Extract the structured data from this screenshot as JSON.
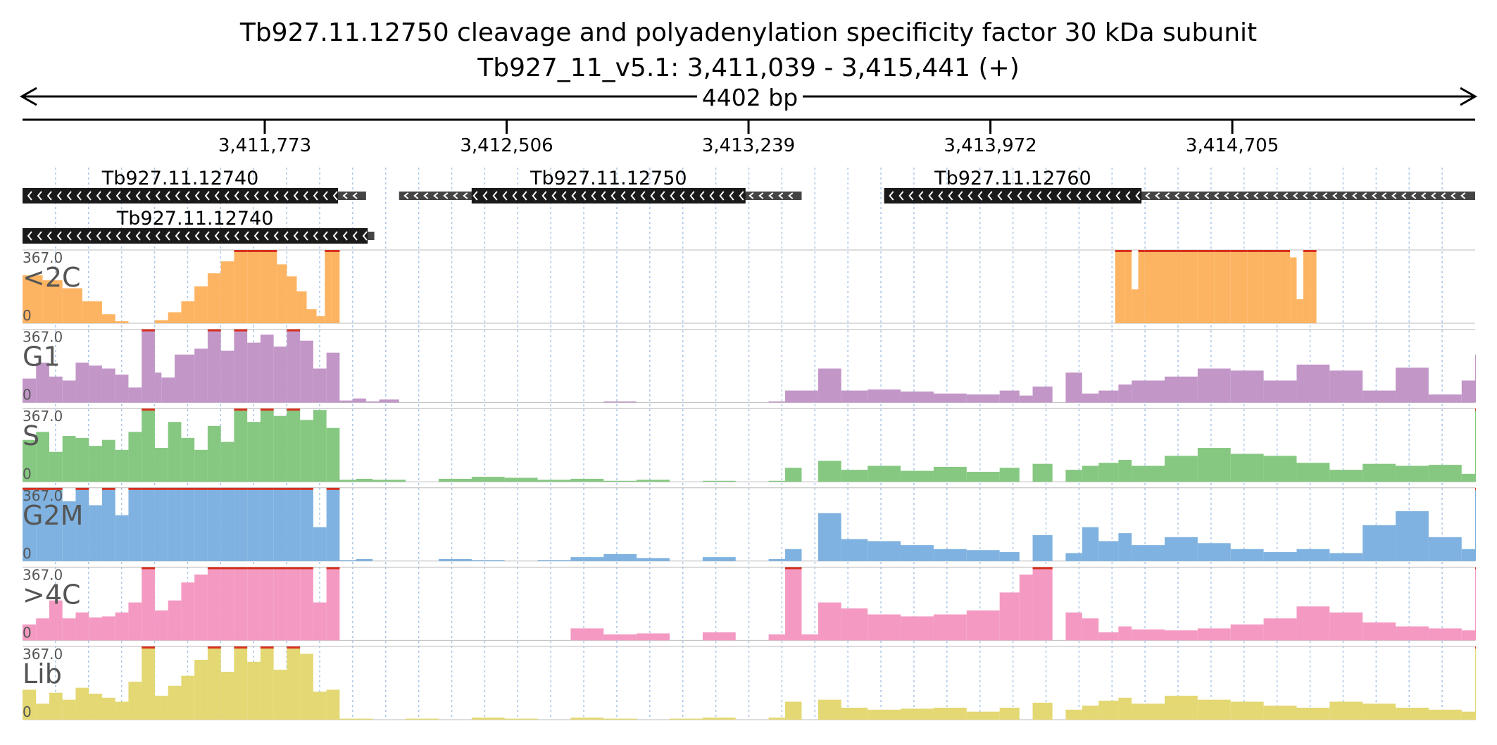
{
  "header": {
    "title_line1": "Tb927.11.12750  cleavage and polyadenylation specificity factor 30 kDa subunit",
    "title_line2": "Tb927_11_v5.1: 3,411,039 - 3,415,441 (+)",
    "span_label": "4402 bp"
  },
  "chart_data": {
    "type": "area",
    "title": "Tb927.11.12750  cleavage and polyadenylation specificity factor 30 kDa subunit",
    "subtitle": "Tb927_11_v5.1: 3,411,039 - 3,415,441 (+)",
    "xlim": [
      3411039,
      3415441
    ],
    "x_ticks": [
      3411773,
      3412506,
      3413239,
      3413972,
      3414705
    ],
    "x_tick_labels": [
      "3,411,773",
      "3,412,506",
      "3,413,239",
      "3,413,972",
      "3,414,705"
    ],
    "grid": true,
    "genes": [
      {
        "label": "Tb927.11.12740",
        "row": 0,
        "thin": [
          3411039,
          3412080
        ],
        "thick": [
          3411039,
          3411995
        ],
        "strand": "-",
        "show_label": true
      },
      {
        "label": "Tb927.11.12750",
        "row": 0,
        "thin": [
          3412180,
          3413400
        ],
        "thick": [
          3412400,
          3413230
        ],
        "strand": "-",
        "show_label": true
      },
      {
        "label": "Tb927.11.12760",
        "row": 0,
        "thin": [
          3413650,
          3415441
        ],
        "thick": [
          3413650,
          3414430
        ],
        "strand": "-",
        "show_label": true
      },
      {
        "label": "Tb927.11.12740",
        "row": 1,
        "thin": [
          3411039,
          3412105
        ],
        "thick": [
          3411039,
          3412085
        ],
        "strand": "-",
        "show_label": true
      }
    ],
    "ymax": 367.0,
    "y_scale_label": "367.0",
    "y_zero_label": "0",
    "tracks": [
      {
        "name": "<2C",
        "color": "#fdb462",
        "clip_color": "#d7301f",
        "x": [
          3411039,
          3411100,
          3411160,
          3411220,
          3411280,
          3411320,
          3411360,
          3411400,
          3411440,
          3411480,
          3411520,
          3411560,
          3411600,
          3411640,
          3411680,
          3411720,
          3411760,
          3411810,
          3411840,
          3411870,
          3411900,
          3411930,
          3411955,
          3411975,
          3412000,
          3412030,
          3412060,
          3412100,
          3412150,
          3412200,
          3412300,
          3412400,
          3412500,
          3412600,
          3412700,
          3412800,
          3412900,
          3413000,
          3413100,
          3413200,
          3413300,
          3413400,
          3413500,
          3413600,
          3413700,
          3413800,
          3413900,
          3414000,
          3414100,
          3414200,
          3414300,
          3414350,
          3414380,
          3414400,
          3414420,
          3414440,
          3414500,
          3414550,
          3414600,
          3414650,
          3414700,
          3414750,
          3414800,
          3414850,
          3414880,
          3414900,
          3414920,
          3414940,
          3414960,
          3414990,
          3415000,
          3415050,
          3415100,
          3415200,
          3415300,
          3415441
        ],
        "values": [
          240,
          215,
          175,
          110,
          45,
          10,
          0,
          0,
          15,
          55,
          110,
          185,
          250,
          310,
          367,
          367,
          367,
          295,
          235,
          160,
          70,
          35,
          367,
          367,
          0,
          0,
          0,
          0,
          0,
          0,
          0,
          0,
          0,
          0,
          0,
          0,
          0,
          0,
          0,
          0,
          0,
          0,
          0,
          0,
          0,
          0,
          0,
          0,
          0,
          0,
          0,
          367,
          367,
          170,
          367,
          367,
          367,
          367,
          367,
          367,
          367,
          367,
          367,
          367,
          330,
          120,
          367,
          367,
          0,
          0,
          0,
          0,
          0,
          0,
          0,
          0
        ]
      },
      {
        "name": "G1",
        "color": "#c297c8",
        "clip_color": "#d7301f",
        "x": [
          3411039,
          3411080,
          3411120,
          3411160,
          3411200,
          3411240,
          3411280,
          3411320,
          3411360,
          3411400,
          3411440,
          3411460,
          3411500,
          3411560,
          3411600,
          3411640,
          3411680,
          3411720,
          3411760,
          3411800,
          3411840,
          3411880,
          3411920,
          3411960,
          3412000,
          3412040,
          3412080,
          3412120,
          3412180,
          3412250,
          3412300,
          3412400,
          3412800,
          3412900,
          3413000,
          3413300,
          3413350,
          3413400,
          3413450,
          3413520,
          3413600,
          3413700,
          3413800,
          3413900,
          3414000,
          3414060,
          3414100,
          3414160,
          3414200,
          3414250,
          3414300,
          3414360,
          3414400,
          3414500,
          3414600,
          3414700,
          3414800,
          3414900,
          3415000,
          3415100,
          3415200,
          3415300,
          3415400,
          3415441
        ],
        "values": [
          120,
          200,
          130,
          110,
          200,
          185,
          170,
          140,
          75,
          367,
          150,
          125,
          240,
          270,
          367,
          260,
          367,
          300,
          340,
          280,
          367,
          310,
          170,
          250,
          10,
          20,
          5,
          15,
          0,
          0,
          0,
          0,
          5,
          0,
          0,
          5,
          60,
          60,
          170,
          60,
          65,
          55,
          45,
          40,
          60,
          35,
          80,
          0,
          150,
          45,
          60,
          90,
          110,
          130,
          170,
          160,
          110,
          190,
          160,
          60,
          175,
          40,
          110,
          240
        ]
      },
      {
        "name": "S",
        "color": "#86c881",
        "clip_color": "#d7301f",
        "x": [
          3411039,
          3411080,
          3411120,
          3411160,
          3411200,
          3411240,
          3411280,
          3411320,
          3411360,
          3411400,
          3411440,
          3411480,
          3411520,
          3411560,
          3411600,
          3411640,
          3411680,
          3411720,
          3411760,
          3411800,
          3411840,
          3411880,
          3411920,
          3411960,
          3412000,
          3412050,
          3412100,
          3412200,
          3412300,
          3412400,
          3412500,
          3412600,
          3412700,
          3412800,
          3412900,
          3413000,
          3413100,
          3413200,
          3413300,
          3413350,
          3413400,
          3413450,
          3413520,
          3413600,
          3413700,
          3413800,
          3413900,
          3414000,
          3414060,
          3414100,
          3414160,
          3414200,
          3414250,
          3414300,
          3414360,
          3414400,
          3414500,
          3414600,
          3414700,
          3414800,
          3414900,
          3415000,
          3415100,
          3415200,
          3415300,
          3415400,
          3415441
        ],
        "values": [
          210,
          250,
          150,
          230,
          220,
          180,
          210,
          160,
          250,
          367,
          170,
          300,
          220,
          160,
          280,
          200,
          367,
          300,
          367,
          330,
          367,
          310,
          360,
          270,
          10,
          15,
          10,
          0,
          15,
          25,
          20,
          10,
          15,
          5,
          10,
          0,
          5,
          0,
          5,
          70,
          0,
          105,
          60,
          80,
          55,
          75,
          50,
          70,
          0,
          90,
          0,
          60,
          80,
          95,
          110,
          80,
          130,
          170,
          140,
          130,
          95,
          60,
          90,
          80,
          85,
          40,
          367
        ]
      },
      {
        "name": "G2M",
        "color": "#7fb2e0",
        "clip_color": "#d7301f",
        "x": [
          3411039,
          3411080,
          3411120,
          3411160,
          3411200,
          3411240,
          3411280,
          3411320,
          3411360,
          3411400,
          3411440,
          3411480,
          3411520,
          3411560,
          3411600,
          3411640,
          3411680,
          3411720,
          3411760,
          3411800,
          3411840,
          3411880,
          3411920,
          3411960,
          3412000,
          3412050,
          3412100,
          3412200,
          3412300,
          3412400,
          3412500,
          3412600,
          3412700,
          3412800,
          3412900,
          3413000,
          3413100,
          3413200,
          3413300,
          3413350,
          3413400,
          3413450,
          3413520,
          3413600,
          3413700,
          3413800,
          3413900,
          3414000,
          3414060,
          3414100,
          3414160,
          3414200,
          3414250,
          3414300,
          3414360,
          3414400,
          3414500,
          3414600,
          3414700,
          3414800,
          3414900,
          3415000,
          3415100,
          3415200,
          3415300,
          3415400,
          3415441
        ],
        "values": [
          367,
          367,
          367,
          300,
          367,
          280,
          367,
          230,
          367,
          367,
          367,
          367,
          367,
          367,
          367,
          367,
          367,
          367,
          367,
          367,
          367,
          367,
          170,
          367,
          5,
          10,
          0,
          0,
          10,
          5,
          0,
          5,
          20,
          35,
          15,
          0,
          20,
          0,
          10,
          60,
          0,
          240,
          110,
          100,
          80,
          60,
          55,
          45,
          0,
          130,
          0,
          40,
          170,
          100,
          140,
          80,
          120,
          90,
          60,
          45,
          60,
          40,
          180,
          250,
          120,
          60,
          367
        ]
      },
      {
        "name": ">4C",
        "color": "#f49ac2",
        "clip_color": "#d7301f",
        "x": [
          3411039,
          3411080,
          3411120,
          3411160,
          3411200,
          3411240,
          3411280,
          3411320,
          3411360,
          3411400,
          3411440,
          3411480,
          3411520,
          3411560,
          3411600,
          3411640,
          3411680,
          3411720,
          3411760,
          3411800,
          3411840,
          3411880,
          3411920,
          3411960,
          3412000,
          3412050,
          3412100,
          3412200,
          3412300,
          3412400,
          3412500,
          3412600,
          3412700,
          3412800,
          3412900,
          3413000,
          3413100,
          3413200,
          3413300,
          3413350,
          3413400,
          3413450,
          3413520,
          3413600,
          3413700,
          3413800,
          3413900,
          3414000,
          3414060,
          3414100,
          3414160,
          3414200,
          3414250,
          3414300,
          3414360,
          3414400,
          3414500,
          3414600,
          3414700,
          3414800,
          3414900,
          3415000,
          3415100,
          3415200,
          3415300,
          3415400,
          3415441
        ],
        "values": [
          80,
          110,
          200,
          110,
          140,
          115,
          120,
          140,
          190,
          367,
          150,
          200,
          290,
          330,
          367,
          367,
          367,
          367,
          367,
          367,
          367,
          367,
          190,
          367,
          0,
          0,
          0,
          0,
          0,
          0,
          0,
          0,
          60,
          30,
          35,
          0,
          40,
          0,
          30,
          367,
          30,
          190,
          160,
          130,
          120,
          130,
          150,
          240,
          330,
          367,
          0,
          140,
          110,
          40,
          70,
          55,
          50,
          60,
          80,
          110,
          170,
          140,
          90,
          70,
          60,
          50,
          367
        ]
      },
      {
        "name": "Lib",
        "color": "#e3d873",
        "clip_color": "#d7301f",
        "x": [
          3411039,
          3411080,
          3411120,
          3411160,
          3411200,
          3411240,
          3411280,
          3411320,
          3411360,
          3411400,
          3411440,
          3411480,
          3411520,
          3411560,
          3411600,
          3411640,
          3411680,
          3411720,
          3411760,
          3411800,
          3411840,
          3411880,
          3411920,
          3411960,
          3412000,
          3412050,
          3412100,
          3412200,
          3412300,
          3412400,
          3412500,
          3412600,
          3412700,
          3412800,
          3412900,
          3413000,
          3413100,
          3413200,
          3413300,
          3413350,
          3413400,
          3413450,
          3413520,
          3413600,
          3413700,
          3413800,
          3413900,
          3414000,
          3414060,
          3414100,
          3414160,
          3414200,
          3414250,
          3414300,
          3414360,
          3414400,
          3414500,
          3414600,
          3414700,
          3414800,
          3414900,
          3415000,
          3415100,
          3415200,
          3415300,
          3415400,
          3415441
        ],
        "values": [
          150,
          80,
          135,
          100,
          160,
          130,
          110,
          90,
          190,
          367,
          120,
          170,
          220,
          300,
          367,
          240,
          367,
          290,
          367,
          250,
          367,
          330,
          140,
          150,
          5,
          5,
          0,
          5,
          0,
          10,
          5,
          0,
          10,
          5,
          0,
          5,
          10,
          0,
          10,
          90,
          0,
          100,
          60,
          50,
          55,
          60,
          40,
          60,
          0,
          85,
          0,
          50,
          70,
          95,
          110,
          80,
          120,
          100,
          90,
          70,
          60,
          90,
          80,
          60,
          50,
          40,
          367
        ]
      }
    ]
  }
}
